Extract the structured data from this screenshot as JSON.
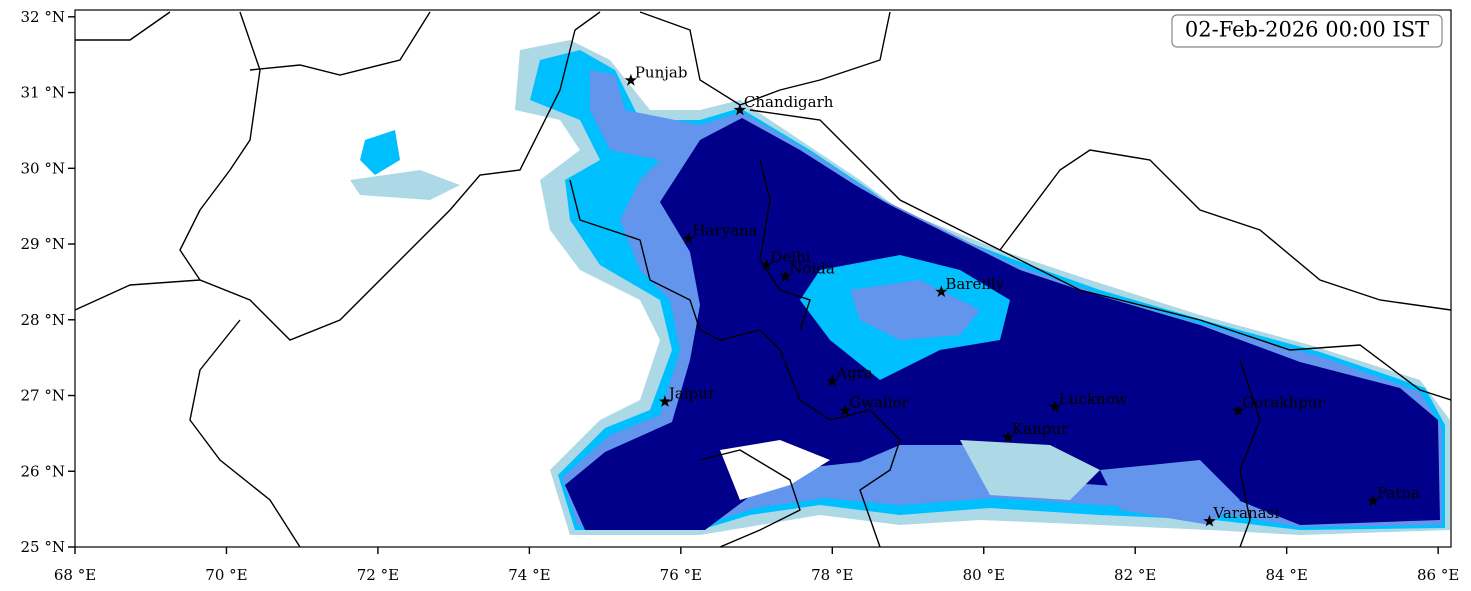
{
  "map": {
    "timestamp": "02-Feb-2026 00:00 IST",
    "xlim": [
      68,
      86.17
    ],
    "ylim": [
      25,
      32.09
    ],
    "xticks": [
      {
        "value": 68,
        "label": "68 °E"
      },
      {
        "value": 70,
        "label": "70 °E"
      },
      {
        "value": 72,
        "label": "72 °E"
      },
      {
        "value": 74,
        "label": "74 °E"
      },
      {
        "value": 76,
        "label": "76 °E"
      },
      {
        "value": 78,
        "label": "78 °E"
      },
      {
        "value": 80,
        "label": "80 °E"
      },
      {
        "value": 82,
        "label": "82 °E"
      },
      {
        "value": 84,
        "label": "84 °E"
      },
      {
        "value": 86,
        "label": "86 °E"
      }
    ],
    "yticks": [
      {
        "value": 25,
        "label": "25 °N"
      },
      {
        "value": 26,
        "label": "26 °N"
      },
      {
        "value": 27,
        "label": "27 °N"
      },
      {
        "value": 28,
        "label": "28 °N"
      },
      {
        "value": 29,
        "label": "29 °N"
      },
      {
        "value": 30,
        "label": "30 °N"
      },
      {
        "value": 31,
        "label": "31 °N"
      },
      {
        "value": 32,
        "label": "32 °N"
      }
    ],
    "cities": [
      {
        "name": "Punjab",
        "lon": 75.34,
        "lat": 31.16
      },
      {
        "name": "Chandigarh",
        "lon": 76.78,
        "lat": 30.77
      },
      {
        "name": "Haryana",
        "lon": 76.1,
        "lat": 29.07
      },
      {
        "name": "Delhi",
        "lon": 77.13,
        "lat": 28.72
      },
      {
        "name": "Noida",
        "lon": 77.38,
        "lat": 28.57
      },
      {
        "name": "Bareilly",
        "lon": 79.44,
        "lat": 28.37
      },
      {
        "name": "Agra",
        "lon": 78.0,
        "lat": 27.19
      },
      {
        "name": "Jaipur",
        "lon": 75.79,
        "lat": 26.92
      },
      {
        "name": "Gwalior",
        "lon": 78.17,
        "lat": 26.8
      },
      {
        "name": "Lucknow",
        "lon": 80.94,
        "lat": 26.85
      },
      {
        "name": "Kanpur",
        "lon": 80.32,
        "lat": 26.45
      },
      {
        "name": "Gorakhpur",
        "lon": 83.36,
        "lat": 26.8
      },
      {
        "name": "Patna",
        "lon": 85.14,
        "lat": 25.61
      },
      {
        "name": "Varanasi",
        "lon": 82.98,
        "lat": 25.34
      }
    ]
  }
}
